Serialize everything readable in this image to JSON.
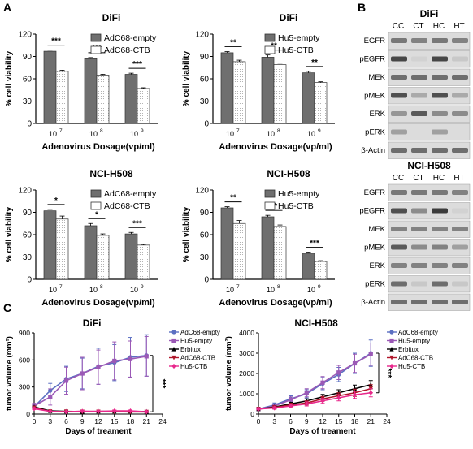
{
  "panel_labels": {
    "a": "A",
    "b": "B",
    "c": "C"
  },
  "colors": {
    "bar_dark": "#6f6f6f",
    "bar_light_fill": "#ffffff",
    "blot_bg": "#dcdcdc",
    "adc68_empty": "#5b6fc2",
    "hu5_empty": "#9b59b6",
    "erbitux": "#000000",
    "adc68_ctb": "#b0162a",
    "hu5_ctb": "#e8288c"
  },
  "chart_data": [
    {
      "type": "bar",
      "title": "DiFi",
      "xlabel": "Adenovirus Dosage(vp/ml)",
      "ylabel": "% cell viability",
      "ylim": [
        0,
        120
      ],
      "yticks": [
        "0",
        "30",
        "60",
        "90",
        "120"
      ],
      "categories": [
        "10",
        "10",
        "10"
      ],
      "category_exponents": [
        "7",
        "8",
        "9"
      ],
      "series": [
        {
          "name": "AdC68-empty",
          "values": [
            97,
            87,
            66
          ],
          "errors": [
            1.5,
            1.5,
            1.5
          ]
        },
        {
          "name": "AdC68-CTB",
          "values": [
            70,
            65,
            47
          ],
          "errors": [
            1.5,
            1,
            1
          ]
        }
      ],
      "significance": [
        "***",
        "***",
        "***"
      ]
    },
    {
      "type": "bar",
      "title": "DiFi",
      "xlabel": "Adenovirus Dosage(vp/ml)",
      "ylabel": "% cell viability",
      "ylim": [
        0,
        120
      ],
      "yticks": [
        "0",
        "30",
        "60",
        "90",
        "120"
      ],
      "categories": [
        "10",
        "10",
        "10"
      ],
      "category_exponents": [
        "7",
        "8",
        "9"
      ],
      "series": [
        {
          "name": "Hu5-empty",
          "values": [
            95,
            89,
            68
          ],
          "errors": [
            1.5,
            3,
            2
          ]
        },
        {
          "name": "Hu5-CTB",
          "values": [
            83,
            79,
            55
          ],
          "errors": [
            2,
            2,
            1
          ]
        }
      ],
      "significance": [
        "**",
        "**",
        "**"
      ]
    },
    {
      "type": "bar",
      "title": "NCI-H508",
      "xlabel": "Adenovirus Dosage(vp/ml)",
      "ylabel": "% cell viability",
      "ylim": [
        0,
        120
      ],
      "yticks": [
        "0",
        "30",
        "60",
        "90",
        "120"
      ],
      "categories": [
        "10",
        "10",
        "10"
      ],
      "category_exponents": [
        "7",
        "8",
        "9"
      ],
      "series": [
        {
          "name": "AdC68-empty",
          "values": [
            92,
            72,
            61
          ],
          "errors": [
            2,
            3,
            2
          ]
        },
        {
          "name": "AdC68-CTB",
          "values": [
            81,
            59,
            46
          ],
          "errors": [
            4,
            2,
            1
          ]
        }
      ],
      "significance": [
        "*",
        "*",
        "***"
      ]
    },
    {
      "type": "bar",
      "title": "NCI-H508",
      "xlabel": "Adenovirus Dosage(vp/ml)",
      "ylabel": "% cell viability",
      "ylim": [
        0,
        120
      ],
      "yticks": [
        "0",
        "30",
        "60",
        "90",
        "120"
      ],
      "categories": [
        "10",
        "10",
        "10"
      ],
      "category_exponents": [
        "7",
        "8",
        "9"
      ],
      "series": [
        {
          "name": "Hu5-empty",
          "values": [
            96,
            84,
            35
          ],
          "errors": [
            1.5,
            2,
            1.5
          ]
        },
        {
          "name": "Hu5-CTB",
          "values": [
            75,
            71,
            24
          ],
          "errors": [
            4,
            2,
            1
          ]
        }
      ],
      "significance": [
        "**",
        "**",
        "***"
      ]
    },
    {
      "type": "line",
      "title": "DiFi",
      "xlabel": "Days of treament",
      "ylabel": "tumor volume (mm³)",
      "xlim": [
        0,
        24
      ],
      "ylim": [
        0,
        900
      ],
      "xticks": [
        "0",
        "3",
        "6",
        "9",
        "12",
        "15",
        "18",
        "21",
        "24"
      ],
      "yticks": [
        "0",
        "300",
        "600",
        "900"
      ],
      "x": [
        0,
        3,
        6,
        9,
        12,
        15,
        18,
        21
      ],
      "series": [
        {
          "name": "AdC68-empty",
          "values": [
            80,
            260,
            390,
            450,
            530,
            570,
            630,
            650
          ],
          "errors": [
            20,
            80,
            140,
            170,
            200,
            200,
            220,
            230
          ]
        },
        {
          "name": "Hu5-empty",
          "values": [
            90,
            190,
            370,
            450,
            520,
            590,
            610,
            640
          ],
          "errors": [
            30,
            90,
            150,
            180,
            190,
            210,
            200,
            220
          ]
        },
        {
          "name": "Erbitux",
          "values": [
            80,
            35,
            30,
            28,
            30,
            30,
            30,
            28
          ],
          "errors": [
            10,
            6,
            6,
            6,
            6,
            6,
            6,
            6
          ]
        },
        {
          "name": "AdC68-CTB",
          "values": [
            70,
            30,
            28,
            26,
            26,
            26,
            24,
            24
          ],
          "errors": [
            10,
            6,
            6,
            6,
            6,
            6,
            6,
            6
          ]
        },
        {
          "name": "Hu5-CTB",
          "values": [
            60,
            30,
            25,
            32,
            30,
            35,
            35,
            25
          ],
          "errors": [
            10,
            6,
            6,
            8,
            8,
            10,
            10,
            6
          ]
        }
      ],
      "significance": "***"
    },
    {
      "type": "line",
      "title": "NCI-H508",
      "xlabel": "Days of treament",
      "ylabel": "tumor volume (mm³)",
      "xlim": [
        0,
        24
      ],
      "ylim": [
        0,
        4000
      ],
      "xticks": [
        "0",
        "3",
        "6",
        "9",
        "12",
        "15",
        "18",
        "21",
        "24"
      ],
      "yticks": [
        "0",
        "1000",
        "2000",
        "3000",
        "4000"
      ],
      "x": [
        0,
        3,
        6,
        9,
        12,
        15,
        18,
        21
      ],
      "series": [
        {
          "name": "AdC68-empty",
          "values": [
            250,
            450,
            750,
            1000,
            1500,
            1950,
            2500,
            3000
          ],
          "errors": [
            60,
            100,
            150,
            200,
            300,
            350,
            500,
            650
          ]
        },
        {
          "name": "Hu5-empty",
          "values": [
            250,
            400,
            700,
            1050,
            1550,
            2050,
            2500,
            2950
          ],
          "errors": [
            60,
            100,
            150,
            200,
            300,
            350,
            450,
            550
          ]
        },
        {
          "name": "Erbitux",
          "values": [
            250,
            350,
            500,
            650,
            850,
            1050,
            1250,
            1450
          ],
          "errors": [
            40,
            60,
            80,
            100,
            120,
            150,
            180,
            200
          ]
        },
        {
          "name": "AdC68-CTB",
          "values": [
            250,
            330,
            450,
            550,
            750,
            900,
            1050,
            1250
          ],
          "errors": [
            40,
            60,
            80,
            100,
            120,
            150,
            180,
            200
          ]
        },
        {
          "name": "Hu5-CTB",
          "values": [
            250,
            300,
            400,
            500,
            650,
            800,
            950,
            1050
          ],
          "errors": [
            40,
            60,
            80,
            100,
            120,
            150,
            180,
            200
          ]
        }
      ],
      "significance": "***"
    }
  ],
  "blots": [
    {
      "title": "DiFi",
      "lanes": [
        "CC",
        "CT",
        "HC",
        "HT"
      ],
      "rows": [
        {
          "label": "EGFR",
          "intensity": [
            0.55,
            0.5,
            0.55,
            0.5
          ]
        },
        {
          "label": "pEGFR",
          "intensity": [
            0.8,
            0.1,
            0.8,
            0.15
          ]
        },
        {
          "label": "MEK",
          "intensity": [
            0.6,
            0.6,
            0.6,
            0.6
          ]
        },
        {
          "label": "pMEK",
          "intensity": [
            0.75,
            0.3,
            0.75,
            0.3
          ]
        },
        {
          "label": "ERK",
          "intensity": [
            0.4,
            0.7,
            0.45,
            0.45
          ]
        },
        {
          "label": "pERK",
          "intensity": [
            0.35,
            0.05,
            0.35,
            0.05
          ]
        },
        {
          "label": "β-Actin",
          "intensity": [
            0.6,
            0.6,
            0.6,
            0.6
          ]
        }
      ]
    },
    {
      "title": "NCI-H508",
      "lanes": [
        "CC",
        "CT",
        "HC",
        "HT"
      ],
      "rows": [
        {
          "label": "EGFR",
          "intensity": [
            0.55,
            0.55,
            0.55,
            0.5
          ]
        },
        {
          "label": "pEGFR",
          "intensity": [
            0.75,
            0.45,
            0.85,
            0.1
          ]
        },
        {
          "label": "MEK",
          "intensity": [
            0.5,
            0.5,
            0.5,
            0.5
          ]
        },
        {
          "label": "pMEK",
          "intensity": [
            0.7,
            0.45,
            0.5,
            0.35
          ]
        },
        {
          "label": "ERK",
          "intensity": [
            0.5,
            0.5,
            0.5,
            0.5
          ]
        },
        {
          "label": "pERK",
          "intensity": [
            0.6,
            0.15,
            0.6,
            0.15
          ]
        },
        {
          "label": "β-Actin",
          "intensity": [
            0.6,
            0.6,
            0.6,
            0.6
          ]
        }
      ]
    }
  ]
}
